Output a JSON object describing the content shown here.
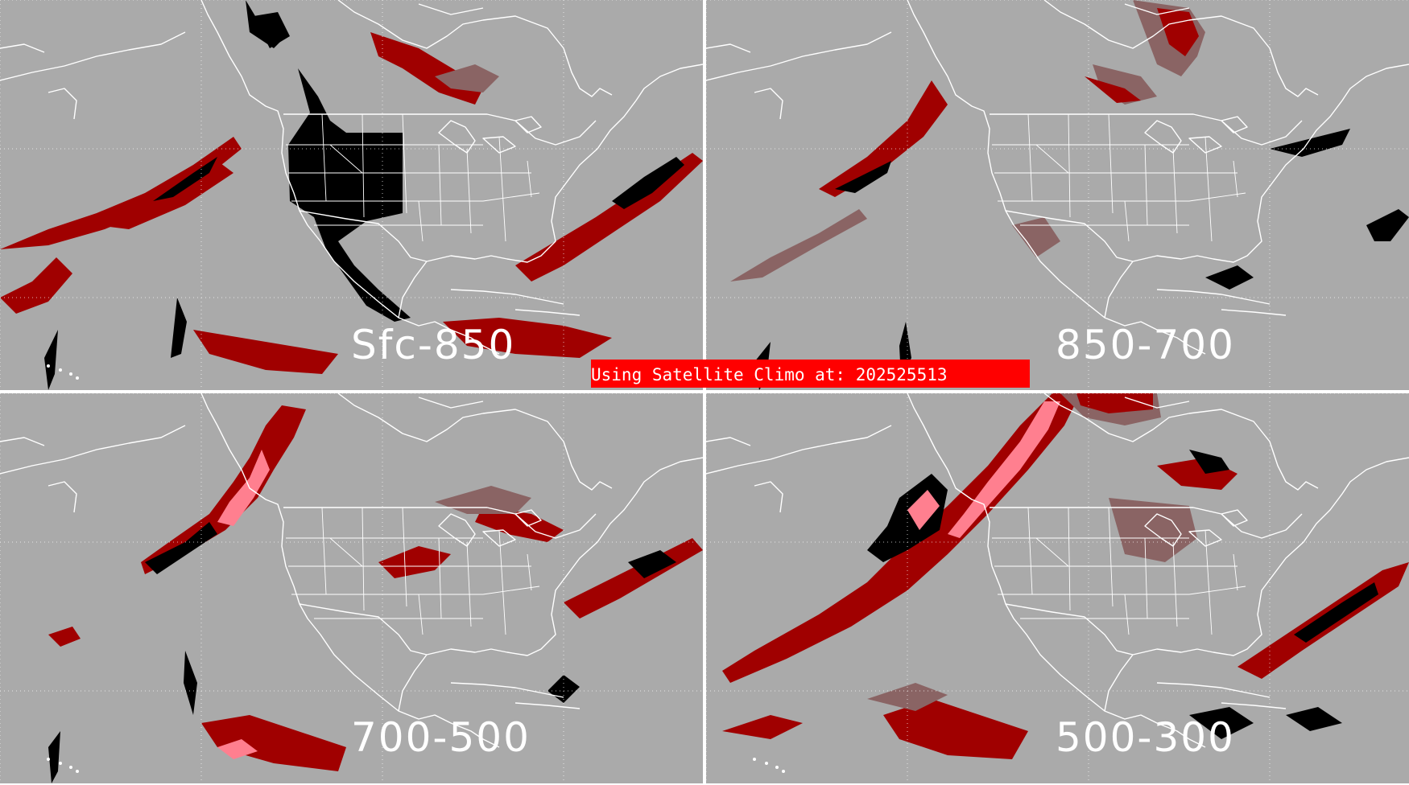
{
  "colors": {
    "background": "#aaaaaa",
    "divider": "#ffffff",
    "boundaries": "#ffffff",
    "category_dark": "#000000",
    "category_red": "#a00000",
    "category_rosy": "#8a6464",
    "category_pink": "#ff7f8f",
    "banner": "#ff0000"
  },
  "panels": [
    {
      "label": "Sfc-850"
    },
    {
      "label": "850-700"
    },
    {
      "label": "700-500"
    },
    {
      "label": "500-300"
    }
  ],
  "banner": {
    "text": "Using Satellite Climo at: 202525513"
  }
}
